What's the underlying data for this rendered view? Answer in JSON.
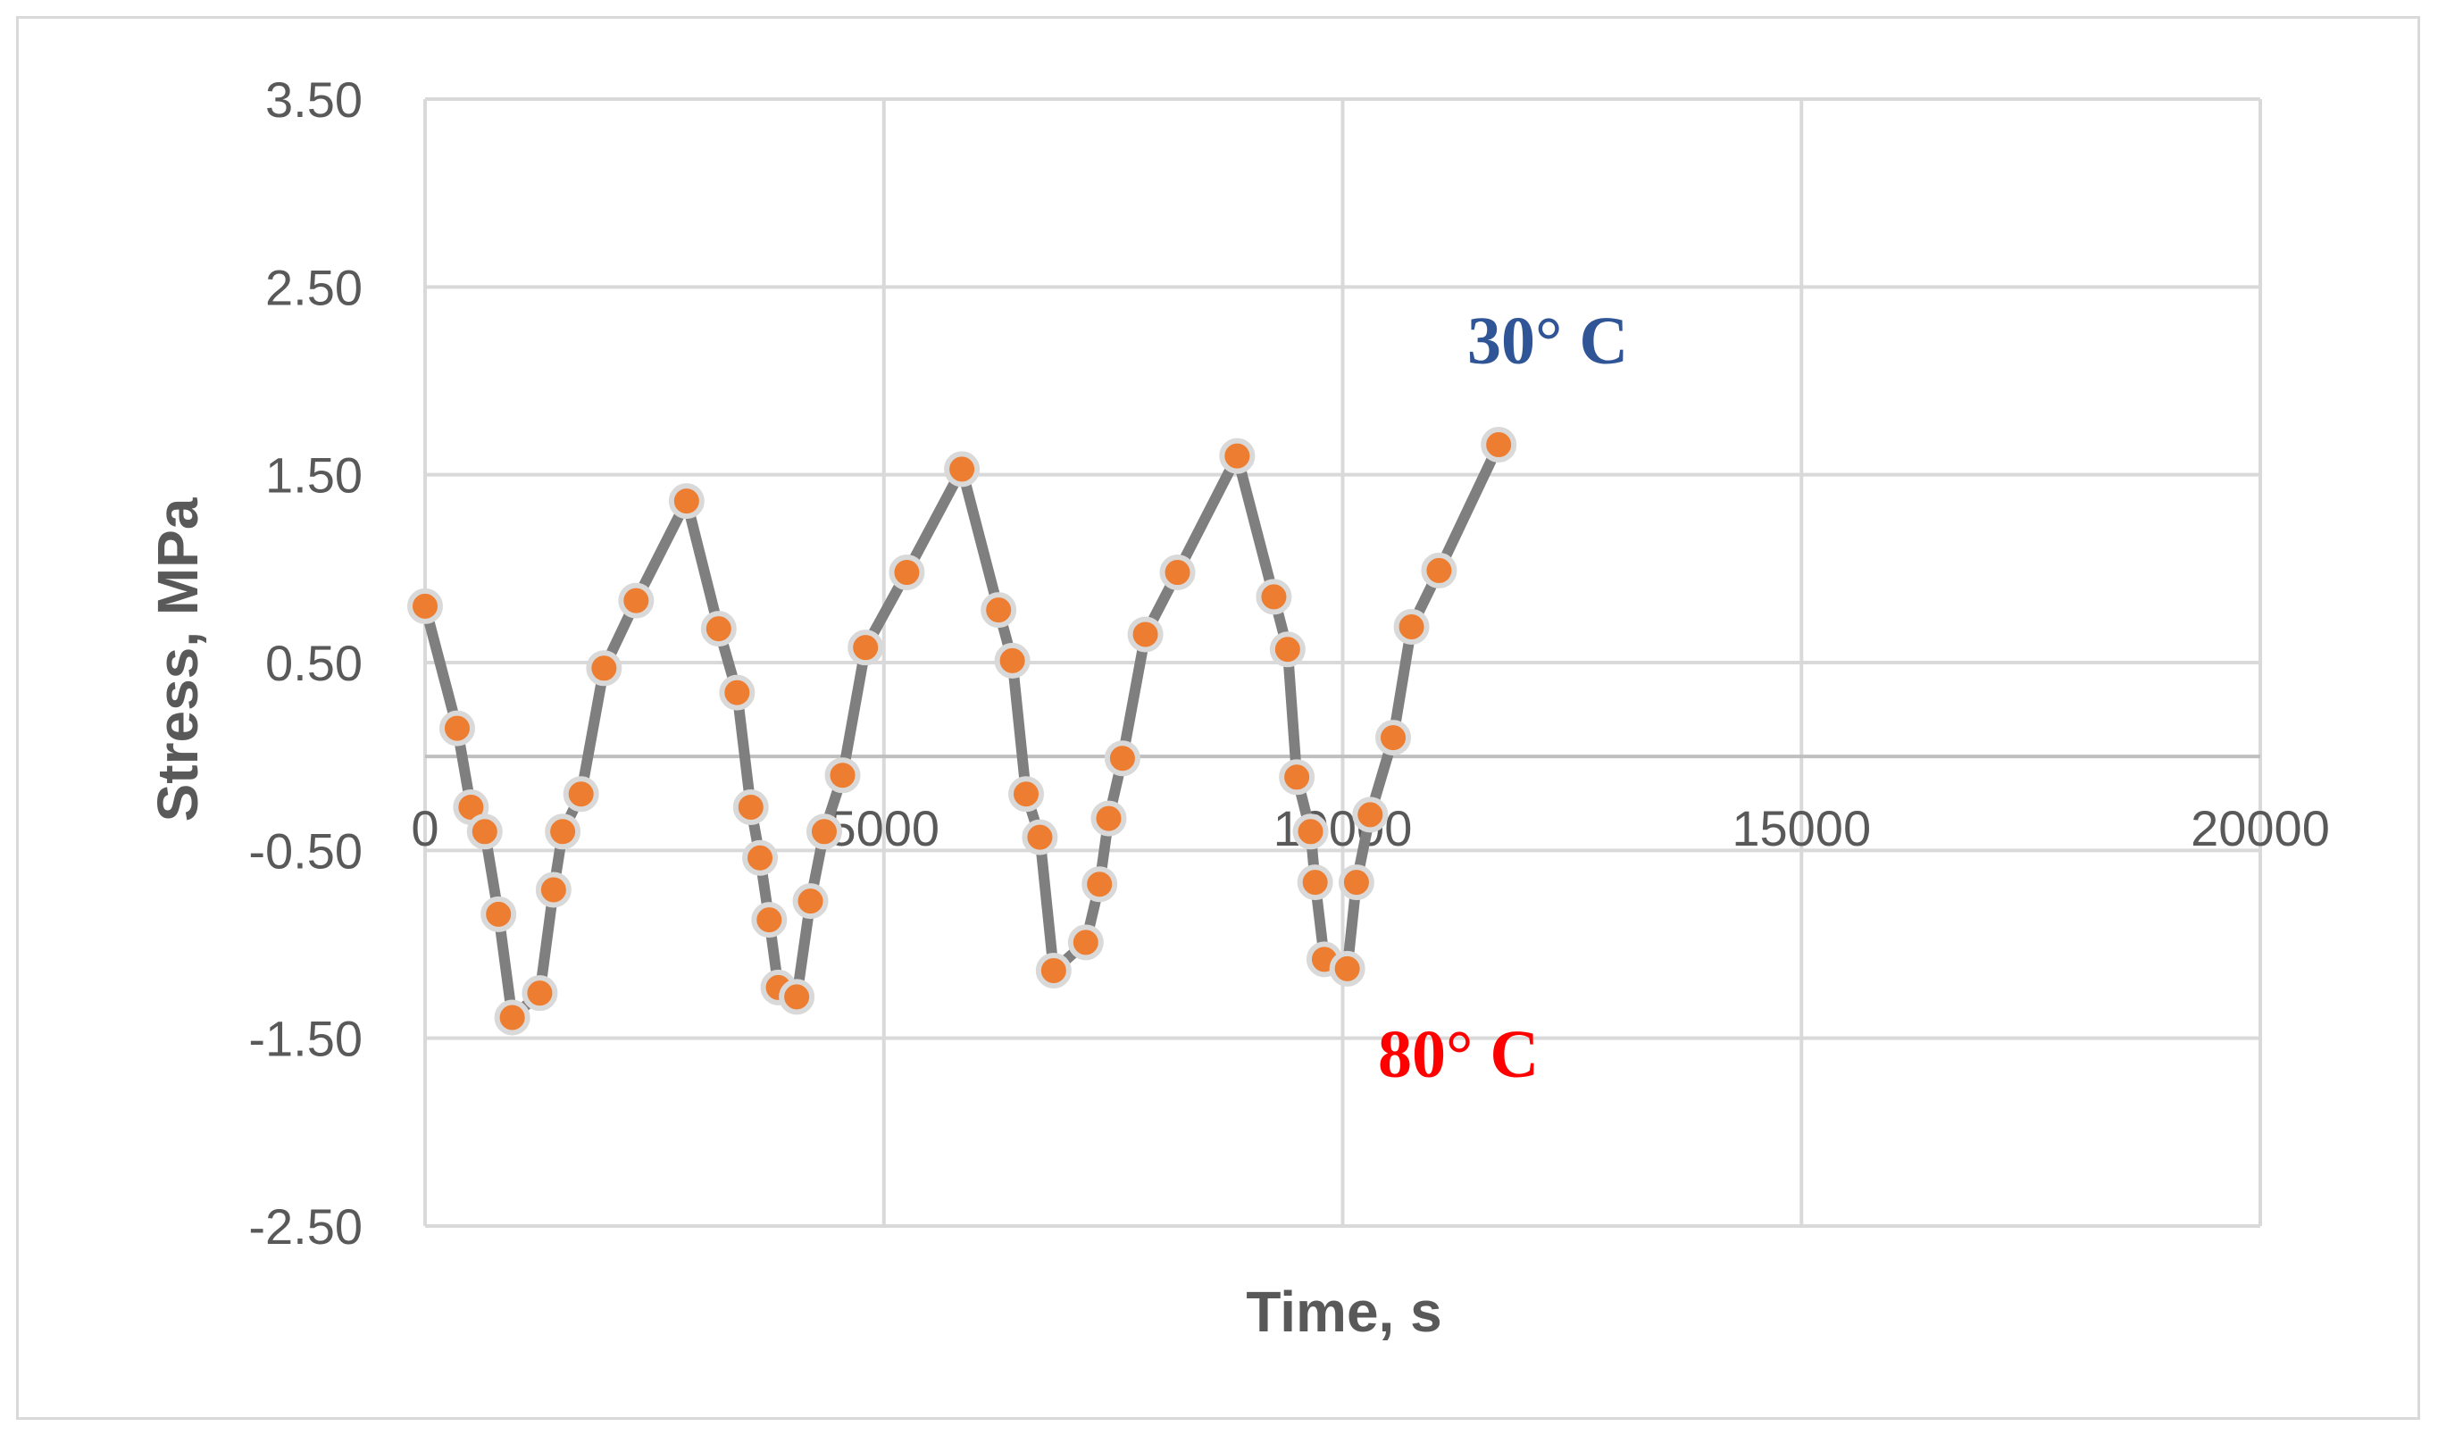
{
  "chart_data": {
    "type": "scatter",
    "title": "",
    "xlabel": "Time, s",
    "ylabel": "Stress, MPa",
    "xlim": [
      0,
      20000
    ],
    "ylim": [
      -2.5,
      3.5
    ],
    "x_ticks": [
      "0",
      "5000",
      "10000",
      "15000",
      "20000"
    ],
    "y_ticks": [
      "3.50",
      "2.50",
      "1.50",
      "0.50",
      "-0.50",
      "-1.50",
      "-2.50"
    ],
    "grid": true,
    "legend": "none",
    "series": [
      {
        "x": [
          0,
          350,
          500,
          650,
          800,
          950,
          1250,
          1400,
          1500,
          1700,
          1950,
          2300,
          2850,
          3200,
          3400,
          3550,
          3650,
          3750,
          3850,
          4050,
          4200,
          4350,
          4550,
          4800,
          5250,
          5850,
          6250,
          6400,
          6550,
          6700,
          6850,
          7200,
          7350,
          7450,
          7600,
          7850,
          8200,
          8850,
          9250,
          9400,
          9500,
          9650,
          9700,
          9800,
          10050,
          10150,
          10300,
          10550,
          10750,
          11050,
          11700
        ],
        "y": [
          0.8,
          0.15,
          -0.27,
          -0.4,
          -0.84,
          -1.39,
          -1.26,
          -0.71,
          -0.4,
          -0.2,
          0.47,
          0.83,
          1.36,
          0.68,
          0.34,
          -0.27,
          -0.54,
          -0.87,
          -1.23,
          -1.28,
          -0.77,
          -0.4,
          -0.1,
          0.58,
          0.98,
          1.53,
          0.78,
          0.51,
          -0.2,
          -0.43,
          -1.14,
          -0.99,
          -0.68,
          -0.33,
          -0.01,
          0.65,
          0.98,
          1.6,
          0.85,
          0.57,
          -0.11,
          -0.4,
          -0.67,
          -1.08,
          -1.13,
          -0.67,
          -0.31,
          0.1,
          0.69,
          0.99,
          1.66
        ]
      }
    ],
    "annotations": [
      "30° C",
      "80° C"
    ],
    "colors": {
      "line": "#7f7f7f",
      "marker": "#ed7d31",
      "marker_edge": "#d9d9d9",
      "grid": "#d9d9d9",
      "annot_30": "#2f5597",
      "annot_80": "#ff0000"
    }
  }
}
